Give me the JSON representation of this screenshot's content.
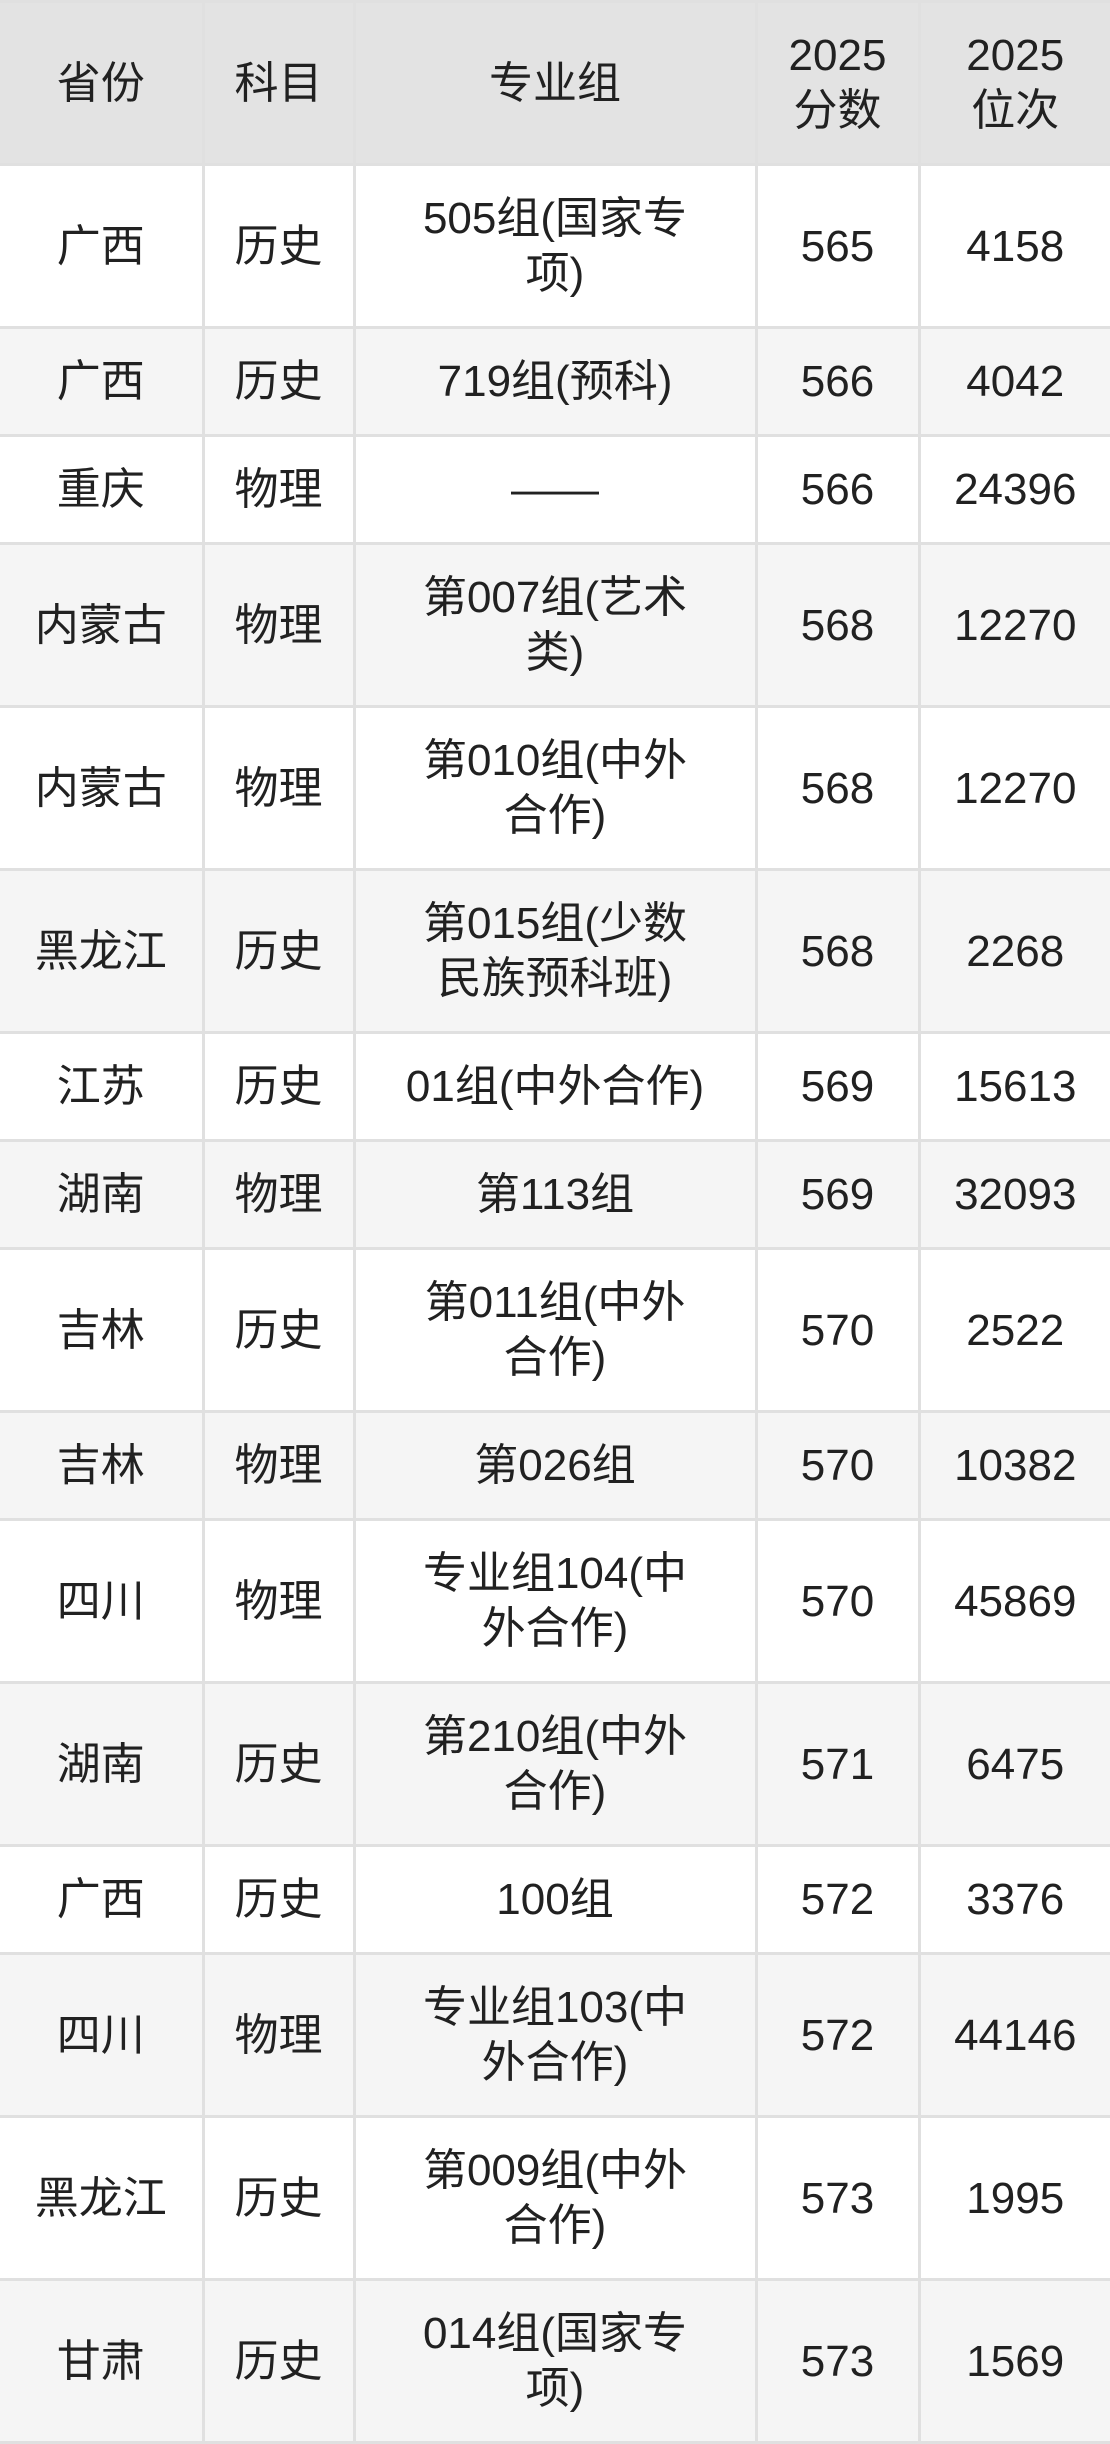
{
  "colors": {
    "header_bg": "#e3e3e3",
    "row_bg": "#ffffff",
    "row_alt_bg": "#f5f5f5",
    "border": "#e0e0e0",
    "text": "#212121"
  },
  "table": {
    "columns": [
      {
        "key": "province",
        "label": "省份"
      },
      {
        "key": "subject",
        "label": "科目"
      },
      {
        "key": "group",
        "label": "专业组"
      },
      {
        "key": "score",
        "label": "2025\n分数"
      },
      {
        "key": "rank",
        "label": "2025\n位次"
      }
    ],
    "rows": [
      {
        "province": "广西",
        "subject": "历史",
        "group": "505组(国家专\n项)",
        "score": "565",
        "rank": "4158"
      },
      {
        "province": "广西",
        "subject": "历史",
        "group": "719组(预科)",
        "score": "566",
        "rank": "4042"
      },
      {
        "province": "重庆",
        "subject": "物理",
        "group": "——",
        "score": "566",
        "rank": "24396"
      },
      {
        "province": "内蒙古",
        "subject": "物理",
        "group": "第007组(艺术\n类)",
        "score": "568",
        "rank": "12270"
      },
      {
        "province": "内蒙古",
        "subject": "物理",
        "group": "第010组(中外\n合作)",
        "score": "568",
        "rank": "12270"
      },
      {
        "province": "黑龙江",
        "subject": "历史",
        "group": "第015组(少数\n民族预科班)",
        "score": "568",
        "rank": "2268"
      },
      {
        "province": "江苏",
        "subject": "历史",
        "group": "01组(中外合作)",
        "score": "569",
        "rank": "15613"
      },
      {
        "province": "湖南",
        "subject": "物理",
        "group": "第113组",
        "score": "569",
        "rank": "32093"
      },
      {
        "province": "吉林",
        "subject": "历史",
        "group": "第011组(中外\n合作)",
        "score": "570",
        "rank": "2522"
      },
      {
        "province": "吉林",
        "subject": "物理",
        "group": "第026组",
        "score": "570",
        "rank": "10382"
      },
      {
        "province": "四川",
        "subject": "物理",
        "group": "专业组104(中\n外合作)",
        "score": "570",
        "rank": "45869"
      },
      {
        "province": "湖南",
        "subject": "历史",
        "group": "第210组(中外\n合作)",
        "score": "571",
        "rank": "6475"
      },
      {
        "province": "广西",
        "subject": "历史",
        "group": "100组",
        "score": "572",
        "rank": "3376"
      },
      {
        "province": "四川",
        "subject": "物理",
        "group": "专业组103(中\n外合作)",
        "score": "572",
        "rank": "44146"
      },
      {
        "province": "黑龙江",
        "subject": "历史",
        "group": "第009组(中外\n合作)",
        "score": "573",
        "rank": "1995"
      },
      {
        "province": "甘肃",
        "subject": "历史",
        "group": "014组(国家专\n项)",
        "score": "573",
        "rank": "1569"
      }
    ]
  },
  "chart_data": {
    "type": "table",
    "title": "",
    "columns": [
      "省份",
      "科目",
      "专业组",
      "2025分数",
      "2025位次"
    ],
    "rows": [
      [
        "广西",
        "历史",
        "505组(国家专项)",
        565,
        4158
      ],
      [
        "广西",
        "历史",
        "719组(预科)",
        566,
        4042
      ],
      [
        "重庆",
        "物理",
        "——",
        566,
        24396
      ],
      [
        "内蒙古",
        "物理",
        "第007组(艺术类)",
        568,
        12270
      ],
      [
        "内蒙古",
        "物理",
        "第010组(中外合作)",
        568,
        12270
      ],
      [
        "黑龙江",
        "历史",
        "第015组(少数民族预科班)",
        568,
        2268
      ],
      [
        "江苏",
        "历史",
        "01组(中外合作)",
        569,
        15613
      ],
      [
        "湖南",
        "物理",
        "第113组",
        569,
        32093
      ],
      [
        "吉林",
        "历史",
        "第011组(中外合作)",
        570,
        2522
      ],
      [
        "吉林",
        "物理",
        "第026组",
        570,
        10382
      ],
      [
        "四川",
        "物理",
        "专业组104(中外合作)",
        570,
        45869
      ],
      [
        "湖南",
        "历史",
        "第210组(中外合作)",
        571,
        6475
      ],
      [
        "广西",
        "历史",
        "100组",
        572,
        3376
      ],
      [
        "四川",
        "物理",
        "专业组103(中外合作)",
        572,
        44146
      ],
      [
        "黑龙江",
        "历史",
        "第009组(中外合作)",
        573,
        1995
      ],
      [
        "甘肃",
        "历史",
        "014组(国家专项)",
        573,
        1569
      ]
    ]
  }
}
